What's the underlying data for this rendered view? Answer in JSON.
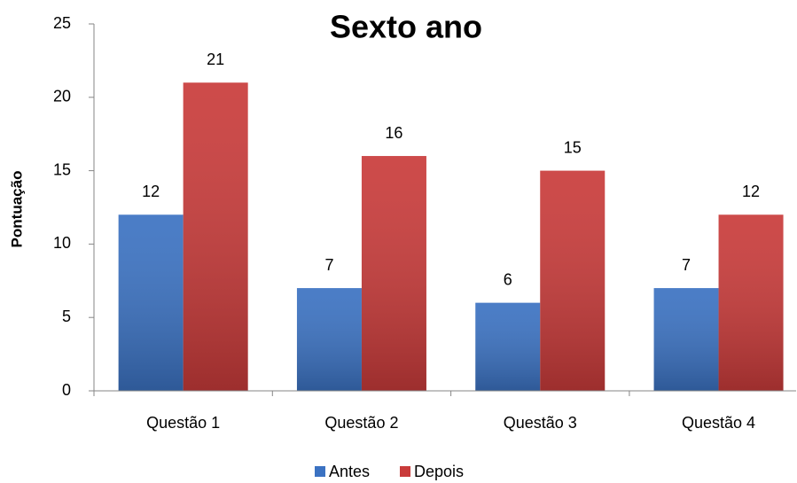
{
  "chart_data": {
    "type": "bar",
    "title": "Sexto ano",
    "y_label": "Pontuação",
    "categories": [
      "Questão 1",
      "Questão 2",
      "Questão 3",
      "Questão 4"
    ],
    "series": [
      {
        "name": "Antes",
        "color": "#3b72c2",
        "values": [
          12,
          7,
          6,
          7
        ]
      },
      {
        "name": "Depois",
        "color": "#c93b3a",
        "values": [
          21,
          16,
          15,
          12
        ]
      }
    ],
    "ylim": [
      0,
      25
    ],
    "yticks": [
      0,
      5,
      10,
      15,
      20,
      25
    ],
    "grid": false,
    "legend": "bottom"
  }
}
